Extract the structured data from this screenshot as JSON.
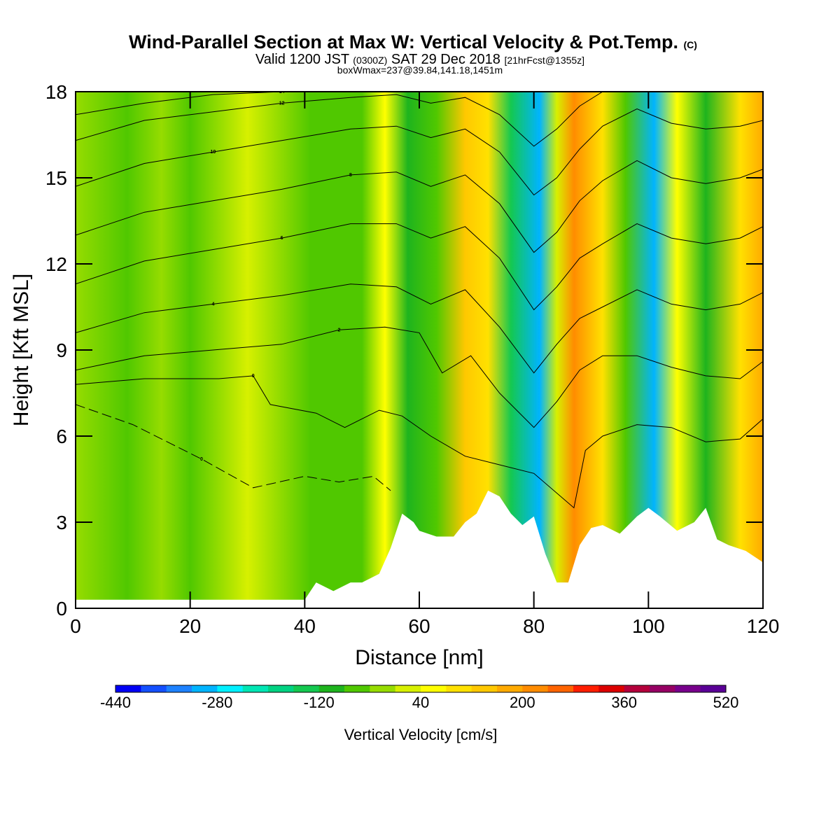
{
  "chart_data": {
    "type": "heatmap",
    "title": "Wind-Parallel Section at Max W: Vertical Velocity & Pot.Temp.",
    "title_mark": "(C)",
    "subtitle": {
      "valid": "Valid 1200 JST",
      "utc": "(0300Z)",
      "date": "SAT 29 Dec 2018",
      "fcst": "[21hrFcst@1355z]"
    },
    "box_info": "boxWmax=237@39.84,141.18,1451m",
    "xlabel": "Distance [nm]",
    "ylabel": "Height [Kft MSL]",
    "xlim": [
      0,
      120
    ],
    "ylim": [
      0,
      18
    ],
    "xticks": [
      "0",
      "20",
      "40",
      "60",
      "80",
      "100",
      "120"
    ],
    "yticks": [
      "0",
      "3",
      "6",
      "9",
      "12",
      "15",
      "18"
    ],
    "colorbar": {
      "label": "Vertical Velocity [cm/s]",
      "tick_labels": [
        "-440",
        "-280",
        "-120",
        "40",
        "200",
        "360",
        "520"
      ],
      "colors": [
        "#0000f5",
        "#1450ff",
        "#1e82ff",
        "#00b4ff",
        "#00f0ff",
        "#00e6b4",
        "#00d282",
        "#14c850",
        "#1eb41e",
        "#50c800",
        "#96dc00",
        "#d7f000",
        "#ffff00",
        "#ffe100",
        "#ffc800",
        "#ffaa00",
        "#ff8c00",
        "#ff6400",
        "#ff1e00",
        "#dc0000",
        "#b4003c",
        "#960064",
        "#78008c",
        "#5a0096"
      ]
    },
    "vertical_velocity_columns": [
      {
        "x": 0,
        "w_cm_s": -20
      },
      {
        "x": 9,
        "w_cm_s": -50
      },
      {
        "x": 15,
        "w_cm_s": -20
      },
      {
        "x": 20,
        "w_cm_s": -50
      },
      {
        "x": 30,
        "w_cm_s": 0
      },
      {
        "x": 41,
        "w_cm_s": -60
      },
      {
        "x": 50,
        "w_cm_s": -70
      },
      {
        "x": 54,
        "w_cm_s": 40
      },
      {
        "x": 58,
        "w_cm_s": -120
      },
      {
        "x": 63,
        "w_cm_s": -60
      },
      {
        "x": 68,
        "w_cm_s": 120
      },
      {
        "x": 72,
        "w_cm_s": 80
      },
      {
        "x": 76,
        "w_cm_s": -160
      },
      {
        "x": 81,
        "w_cm_s": -300
      },
      {
        "x": 84,
        "w_cm_s": 0
      },
      {
        "x": 87,
        "w_cm_s": 237
      },
      {
        "x": 92,
        "w_cm_s": 80
      },
      {
        "x": 96,
        "w_cm_s": -60
      },
      {
        "x": 101,
        "w_cm_s": -320
      },
      {
        "x": 105,
        "w_cm_s": 40
      },
      {
        "x": 110,
        "w_cm_s": -100
      },
      {
        "x": 116,
        "w_cm_s": 100
      },
      {
        "x": 120,
        "w_cm_s": 180
      }
    ],
    "terrain_kft": {
      "x": [
        0,
        40,
        42,
        45,
        48,
        50,
        53,
        55,
        57,
        59,
        60,
        63,
        66,
        68,
        70,
        72,
        74,
        76,
        78,
        80,
        82,
        84,
        86,
        88,
        90,
        92,
        95,
        98,
        100,
        102,
        105,
        108,
        110,
        112,
        114,
        117,
        120
      ],
      "y": [
        0.3,
        0.3,
        0.9,
        0.6,
        0.9,
        0.9,
        1.2,
        2.1,
        3.3,
        3.0,
        2.7,
        2.5,
        2.5,
        3.0,
        3.3,
        4.1,
        3.9,
        3.3,
        2.9,
        3.2,
        1.9,
        0.9,
        0.9,
        2.2,
        2.8,
        2.9,
        2.6,
        3.2,
        3.5,
        3.2,
        2.7,
        3.0,
        3.5,
        2.4,
        2.2,
        2.0,
        1.6
      ]
    },
    "potential_temperature_contours": [
      {
        "label": "0",
        "dashed": true,
        "points": [
          [
            0,
            7.1
          ],
          [
            10,
            6.4
          ],
          [
            22,
            5.2
          ],
          [
            31,
            4.2
          ],
          [
            40,
            4.6
          ],
          [
            46,
            4.4
          ],
          [
            52,
            4.6
          ],
          [
            55,
            4.1
          ]
        ]
      },
      {
        "label": "0",
        "points": [
          [
            0,
            7.8
          ],
          [
            12,
            8.0
          ],
          [
            25,
            8.0
          ],
          [
            31,
            8.1
          ],
          [
            34,
            7.1
          ],
          [
            42,
            6.8
          ],
          [
            47,
            6.3
          ],
          [
            53,
            6.9
          ],
          [
            57,
            6.7
          ],
          [
            62,
            6.0
          ],
          [
            68,
            5.3
          ],
          [
            74,
            5.0
          ],
          [
            80,
            4.7
          ],
          [
            87,
            3.5
          ],
          [
            89,
            5.5
          ],
          [
            92,
            6.0
          ],
          [
            98,
            6.4
          ],
          [
            104,
            6.3
          ],
          [
            110,
            5.8
          ],
          [
            116,
            5.9
          ],
          [
            120,
            6.6
          ]
        ]
      },
      {
        "label": "2",
        "points": [
          [
            0,
            8.3
          ],
          [
            12,
            8.8
          ],
          [
            24,
            9.0
          ],
          [
            36,
            9.2
          ],
          [
            46,
            9.7
          ],
          [
            54,
            9.8
          ],
          [
            60,
            9.6
          ],
          [
            64,
            8.2
          ],
          [
            69,
            8.8
          ],
          [
            74,
            7.5
          ],
          [
            80,
            6.3
          ],
          [
            84,
            7.2
          ],
          [
            88,
            8.3
          ],
          [
            92,
            8.8
          ],
          [
            98,
            8.8
          ],
          [
            104,
            8.4
          ],
          [
            110,
            8.1
          ],
          [
            116,
            8.0
          ],
          [
            120,
            8.6
          ]
        ]
      },
      {
        "label": "4",
        "points": [
          [
            0,
            9.6
          ],
          [
            12,
            10.3
          ],
          [
            24,
            10.6
          ],
          [
            36,
            10.9
          ],
          [
            48,
            11.3
          ],
          [
            56,
            11.2
          ],
          [
            62,
            10.6
          ],
          [
            68,
            11.1
          ],
          [
            74,
            9.8
          ],
          [
            80,
            8.2
          ],
          [
            84,
            9.2
          ],
          [
            88,
            10.1
          ],
          [
            92,
            10.5
          ],
          [
            98,
            11.1
          ],
          [
            104,
            10.6
          ],
          [
            110,
            10.4
          ],
          [
            116,
            10.6
          ],
          [
            120,
            11.0
          ]
        ]
      },
      {
        "label": "6",
        "points": [
          [
            0,
            11.3
          ],
          [
            12,
            12.1
          ],
          [
            24,
            12.5
          ],
          [
            36,
            12.9
          ],
          [
            48,
            13.4
          ],
          [
            56,
            13.4
          ],
          [
            62,
            12.9
          ],
          [
            68,
            13.3
          ],
          [
            74,
            12.2
          ],
          [
            80,
            10.4
          ],
          [
            84,
            11.2
          ],
          [
            88,
            12.2
          ],
          [
            92,
            12.7
          ],
          [
            98,
            13.4
          ],
          [
            104,
            12.9
          ],
          [
            110,
            12.7
          ],
          [
            116,
            12.9
          ],
          [
            120,
            13.3
          ]
        ]
      },
      {
        "label": "8",
        "points": [
          [
            0,
            13.0
          ],
          [
            12,
            13.8
          ],
          [
            24,
            14.2
          ],
          [
            36,
            14.6
          ],
          [
            48,
            15.1
          ],
          [
            56,
            15.2
          ],
          [
            62,
            14.7
          ],
          [
            68,
            15.1
          ],
          [
            74,
            14.1
          ],
          [
            80,
            12.4
          ],
          [
            84,
            13.1
          ],
          [
            88,
            14.2
          ],
          [
            92,
            14.9
          ],
          [
            98,
            15.6
          ],
          [
            104,
            15.0
          ],
          [
            110,
            14.8
          ],
          [
            116,
            15.0
          ],
          [
            120,
            15.3
          ]
        ]
      },
      {
        "label": "10",
        "points": [
          [
            0,
            14.7
          ],
          [
            12,
            15.5
          ],
          [
            24,
            15.9
          ],
          [
            36,
            16.3
          ],
          [
            48,
            16.7
          ],
          [
            56,
            16.8
          ],
          [
            62,
            16.4
          ],
          [
            68,
            16.7
          ],
          [
            74,
            15.9
          ],
          [
            80,
            14.4
          ],
          [
            84,
            15.0
          ],
          [
            88,
            16.0
          ],
          [
            92,
            16.8
          ],
          [
            98,
            17.4
          ],
          [
            104,
            16.9
          ],
          [
            110,
            16.7
          ],
          [
            116,
            16.8
          ],
          [
            120,
            17.0
          ]
        ]
      },
      {
        "label": "12",
        "points": [
          [
            0,
            16.3
          ],
          [
            12,
            17.0
          ],
          [
            24,
            17.3
          ],
          [
            36,
            17.6
          ],
          [
            48,
            17.8
          ],
          [
            56,
            17.9
          ],
          [
            62,
            17.6
          ],
          [
            68,
            17.8
          ],
          [
            74,
            17.2
          ],
          [
            80,
            16.1
          ],
          [
            84,
            16.7
          ],
          [
            88,
            17.5
          ],
          [
            92,
            18.0
          ]
        ]
      },
      {
        "label": "14",
        "points": [
          [
            0,
            17.2
          ],
          [
            12,
            17.6
          ],
          [
            24,
            17.9
          ],
          [
            36,
            18.0
          ]
        ]
      }
    ]
  }
}
